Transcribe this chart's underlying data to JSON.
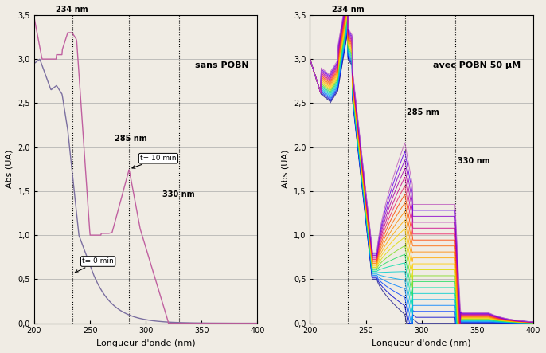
{
  "title_left": "sans POBN",
  "title_right": "avec POBN 50 μM",
  "xlabel": "Longueur d'onde (nm)",
  "ylabel": "Abs (UA)",
  "xlim": [
    200,
    400
  ],
  "ylim": [
    0.0,
    3.5
  ],
  "yticks": [
    0.0,
    0.5,
    1.0,
    1.5,
    2.0,
    2.5,
    3.0,
    3.5
  ],
  "ytick_labels": [
    "0,0",
    "0,5",
    "1,0",
    "1,5",
    "2,0",
    "2,5",
    "3,0",
    "3,5"
  ],
  "xticks": [
    200,
    250,
    300,
    350,
    400
  ],
  "vlines": [
    234,
    285,
    330
  ],
  "bg_color": "#f0ece4",
  "grid_color": "#aaaaaa",
  "curve_t0_color": "#7b6fa0",
  "curve_t10_color": "#c060a0",
  "colors_right": [
    "#1a1a8c",
    "#0000cd",
    "#0040ff",
    "#0080ff",
    "#00aaee",
    "#00cccc",
    "#00ddaa",
    "#20dd60",
    "#80dd20",
    "#dddd00",
    "#ffcc00",
    "#ffaa00",
    "#ff8800",
    "#ff6600",
    "#ff4400",
    "#ee2266",
    "#cc0088",
    "#aa00aa",
    "#8800cc",
    "#6600ee",
    "#c060c0"
  ]
}
